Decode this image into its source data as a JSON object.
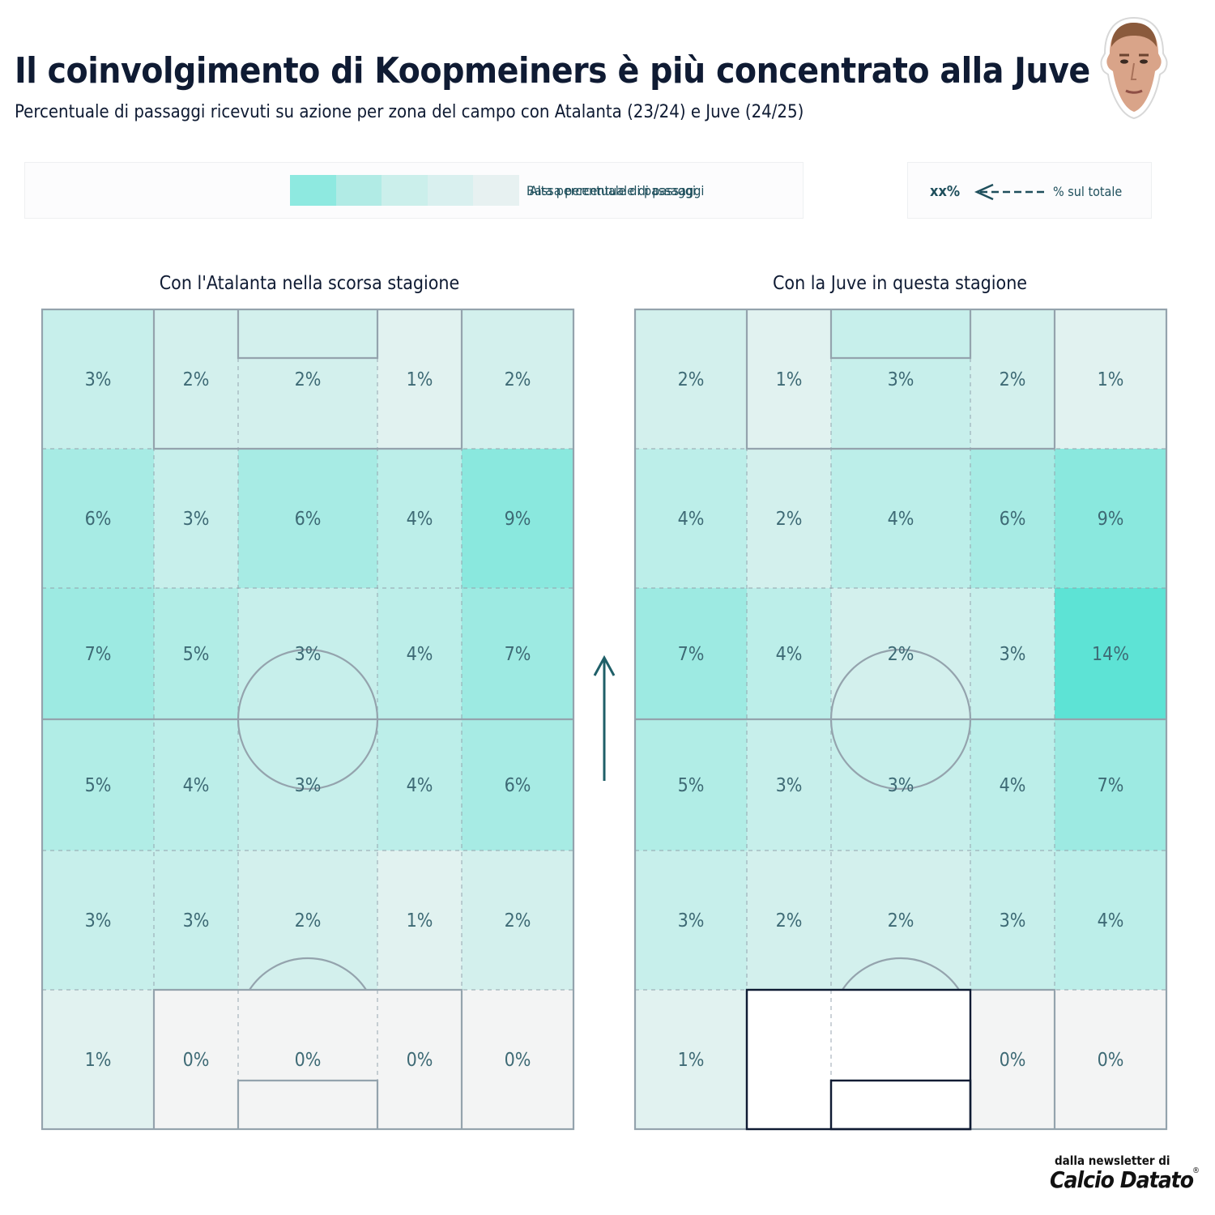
{
  "header": {
    "title": "Il coinvolgimento di Koopmeiners è più concentrato alla Juve",
    "subtitle": "Percentuale di passaggi ricevuti su azione per zona del campo con Atalanta (23/24) e Juve (24/25)"
  },
  "legend": {
    "high_label": "Alta percentuale di passaggi",
    "low_label": "Bassa percentuale di passaggi",
    "swatch_colors": [
      "#8ee9e0",
      "#b1ebe5",
      "#cbefeb",
      "#d9f0ef",
      "#e7f1f1"
    ],
    "key_value": "xx%",
    "key_text": "% sul totale"
  },
  "footer": {
    "line1": "dalla newsletter di",
    "line2": "Calcio Datato",
    "reg_mark": "®"
  },
  "colors": {
    "cold": "#f3f4f4",
    "hot": "#5de3d5",
    "line": "#94a3ad",
    "text": "#3e6a75",
    "dark": "#0f1b33"
  },
  "chart_data": [
    {
      "type": "heatmap",
      "title": "Con l'Atalanta nella scorsa stagione",
      "rows_top_to_bottom": 6,
      "cols": 5,
      "values": [
        [
          3,
          2,
          2,
          1,
          2
        ],
        [
          6,
          3,
          6,
          4,
          9
        ],
        [
          7,
          5,
          3,
          4,
          7
        ],
        [
          5,
          4,
          3,
          4,
          6
        ],
        [
          3,
          3,
          2,
          1,
          2
        ],
        [
          1,
          0,
          0,
          0,
          0
        ]
      ],
      "unit": "%"
    },
    {
      "type": "heatmap",
      "title": "Con la Juve in questa stagione",
      "rows_top_to_bottom": 6,
      "cols": 5,
      "values": [
        [
          2,
          1,
          3,
          2,
          1
        ],
        [
          4,
          2,
          4,
          6,
          9
        ],
        [
          7,
          4,
          2,
          3,
          14
        ],
        [
          5,
          3,
          3,
          4,
          7
        ],
        [
          3,
          2,
          2,
          3,
          4
        ],
        [
          1,
          null,
          null,
          0,
          0
        ]
      ],
      "unit": "%"
    }
  ]
}
